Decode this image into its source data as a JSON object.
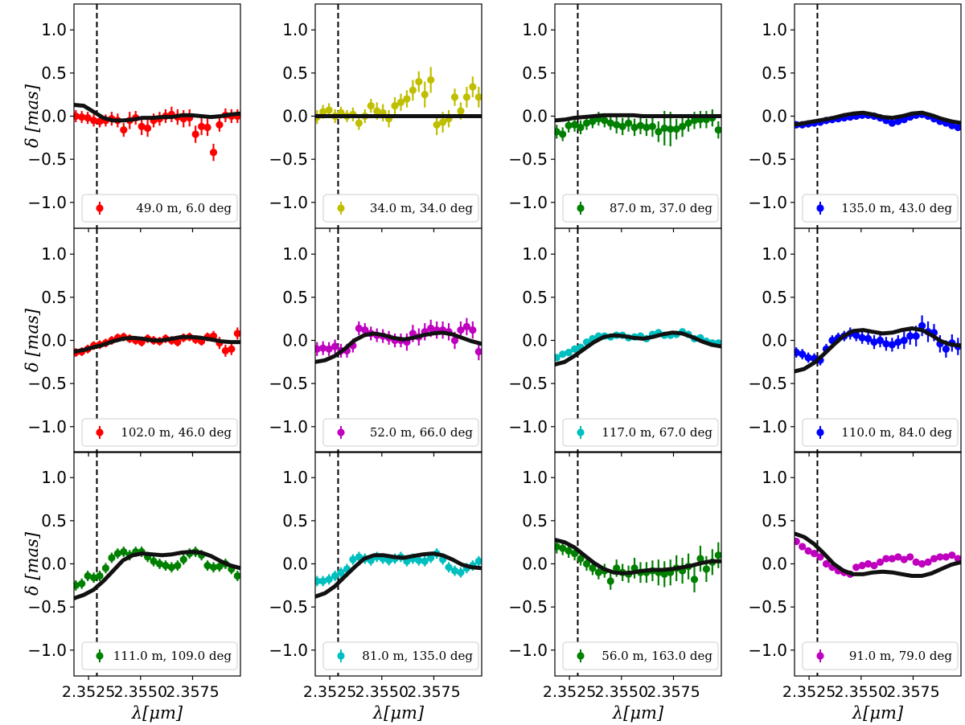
{
  "figure": {
    "xlabel": "λ[μm]",
    "ylabel": "δ [mas]",
    "ylim": [
      -1.3,
      1.3
    ],
    "yticks": [
      1.0,
      0.5,
      0.0,
      -0.5,
      -1.0
    ],
    "ytick_labels": [
      "1.0",
      "0.5",
      "0.0",
      "−0.5",
      "−1.0"
    ],
    "xlim": [
      2.3518,
      2.3598
    ],
    "xticks": [
      2.3525,
      2.355,
      2.3575
    ],
    "xtick_labels": [
      "2.3525",
      "2.3550",
      "2.3575"
    ],
    "line_marker": 2.3529,
    "model_color": "#111111"
  },
  "chart_data": [
    {
      "type": "line",
      "legend": "49.0 m, 6.0 deg",
      "color": "#ff0000",
      "model": [
        0.13,
        0.12,
        0.05,
        -0.02,
        -0.05,
        -0.05,
        -0.04,
        -0.02,
        -0.02,
        -0.01,
        -0.01,
        0.01,
        0.01,
        0.0,
        -0.01,
        0.0,
        0.02,
        0.03
      ],
      "points": [
        0.0,
        -0.01,
        -0.02,
        -0.05,
        -0.06,
        -0.05,
        -0.03,
        -0.05,
        -0.16,
        -0.05,
        -0.02,
        -0.12,
        -0.14,
        -0.05,
        -0.03,
        0.0,
        0.02,
        -0.01,
        -0.03,
        -0.02,
        -0.21,
        -0.12,
        -0.13,
        -0.42,
        -0.1,
        0.01,
        0.0,
        0.0
      ],
      "errors": [
        0.07,
        0.07,
        0.07,
        0.07,
        0.07,
        0.07,
        0.08,
        0.08,
        0.08,
        0.1,
        0.08,
        0.1,
        0.1,
        0.08,
        0.08,
        0.08,
        0.09,
        0.09,
        0.1,
        0.1,
        0.1,
        0.1,
        0.1,
        0.1,
        0.08,
        0.08,
        0.08,
        0.08
      ]
    },
    {
      "type": "line",
      "legend": "34.0 m, 34.0 deg",
      "color": "#bfbf00",
      "model": [
        0.0,
        0.0,
        0.0,
        0.0,
        0.0,
        0.0,
        0.0,
        0.0,
        0.0,
        0.0,
        0.0,
        0.0,
        0.0,
        0.0,
        0.0,
        0.0,
        0.0,
        0.0
      ],
      "points": [
        -0.01,
        0.05,
        0.07,
        0.0,
        0.04,
        0.0,
        0.02,
        -0.08,
        0.0,
        0.12,
        0.06,
        0.04,
        -0.03,
        0.12,
        0.16,
        0.2,
        0.3,
        0.4,
        0.25,
        0.42,
        -0.1,
        -0.07,
        -0.03,
        0.22,
        0.06,
        0.22,
        0.34,
        0.22
      ],
      "errors": [
        0.08,
        0.08,
        0.08,
        0.08,
        0.07,
        0.07,
        0.08,
        0.08,
        0.08,
        0.08,
        0.1,
        0.1,
        0.1,
        0.1,
        0.1,
        0.1,
        0.12,
        0.12,
        0.15,
        0.15,
        0.12,
        0.12,
        0.1,
        0.1,
        0.1,
        0.12,
        0.12,
        0.12
      ]
    },
    {
      "type": "line",
      "legend": "87.0 m, 37.0 deg",
      "color": "#008000",
      "model": [
        -0.05,
        -0.04,
        -0.02,
        -0.01,
        0.0,
        0.01,
        0.01,
        0.01,
        0.01,
        0.0,
        0.0,
        0.0,
        0.0,
        0.0,
        0.0,
        0.0,
        0.0,
        0.0
      ],
      "points": [
        -0.18,
        -0.21,
        -0.11,
        -0.1,
        -0.13,
        -0.08,
        -0.06,
        -0.03,
        -0.05,
        -0.08,
        -0.1,
        -0.12,
        -0.08,
        -0.13,
        -0.11,
        -0.13,
        -0.12,
        -0.18,
        -0.14,
        -0.15,
        -0.15,
        -0.12,
        -0.08,
        -0.05,
        -0.04,
        -0.04,
        -0.02,
        -0.16
      ],
      "errors": [
        0.08,
        0.08,
        0.08,
        0.08,
        0.08,
        0.08,
        0.08,
        0.08,
        0.08,
        0.08,
        0.1,
        0.1,
        0.1,
        0.1,
        0.1,
        0.1,
        0.12,
        0.12,
        0.2,
        0.2,
        0.12,
        0.12,
        0.1,
        0.1,
        0.1,
        0.1,
        0.1,
        0.1
      ]
    },
    {
      "type": "line",
      "legend": "135.0 m, 43.0 deg",
      "color": "#0000ff",
      "model": [
        -0.1,
        -0.08,
        -0.06,
        -0.04,
        -0.02,
        0.01,
        0.03,
        0.04,
        0.02,
        -0.01,
        -0.02,
        0.0,
        0.03,
        0.04,
        0.01,
        -0.03,
        -0.06,
        -0.08
      ],
      "points": [
        -0.1,
        -0.1,
        -0.09,
        -0.08,
        -0.07,
        -0.05,
        -0.04,
        -0.03,
        -0.02,
        -0.01,
        0.0,
        0.01,
        0.01,
        0.0,
        -0.02,
        -0.05,
        -0.08,
        -0.06,
        -0.04,
        -0.01,
        0.01,
        0.02,
        0.0,
        -0.03,
        -0.06,
        -0.08,
        -0.11,
        -0.13
      ],
      "errors": [
        0.04,
        0.04,
        0.04,
        0.04,
        0.04,
        0.04,
        0.04,
        0.04,
        0.04,
        0.04,
        0.04,
        0.04,
        0.04,
        0.04,
        0.04,
        0.04,
        0.04,
        0.04,
        0.04,
        0.04,
        0.04,
        0.04,
        0.04,
        0.04,
        0.04,
        0.04,
        0.04,
        0.04
      ]
    },
    {
      "type": "line",
      "legend": "102.0 m, 46.0 deg",
      "color": "#ff0000",
      "model": [
        -0.13,
        -0.11,
        -0.08,
        -0.05,
        -0.01,
        0.02,
        0.03,
        0.02,
        0.0,
        0.0,
        0.02,
        0.04,
        0.04,
        0.03,
        0.01,
        -0.01,
        -0.02,
        -0.02
      ],
      "points": [
        -0.14,
        -0.13,
        -0.1,
        -0.06,
        -0.05,
        -0.03,
        0.0,
        0.03,
        0.04,
        0.02,
        0.0,
        -0.02,
        0.02,
        0.0,
        -0.01,
        0.02,
        0.0,
        -0.02,
        0.03,
        0.04,
        0.01,
        -0.01,
        0.04,
        0.05,
        -0.03,
        -0.12,
        -0.1,
        0.08
      ],
      "errors": [
        0.05,
        0.05,
        0.05,
        0.05,
        0.05,
        0.05,
        0.05,
        0.05,
        0.05,
        0.05,
        0.05,
        0.05,
        0.05,
        0.05,
        0.05,
        0.05,
        0.05,
        0.05,
        0.05,
        0.05,
        0.05,
        0.05,
        0.05,
        0.06,
        0.07,
        0.07,
        0.07,
        0.07
      ]
    },
    {
      "type": "line",
      "legend": "52.0 m, 66.0 deg",
      "color": "#bf00bf",
      "model": [
        -0.25,
        -0.23,
        -0.18,
        -0.1,
        0.0,
        0.06,
        0.08,
        0.06,
        0.03,
        0.01,
        0.03,
        0.06,
        0.08,
        0.09,
        0.07,
        0.03,
        -0.01,
        -0.04
      ],
      "points": [
        -0.1,
        -0.09,
        -0.1,
        -0.07,
        -0.12,
        -0.12,
        -0.06,
        0.14,
        0.12,
        0.08,
        0.06,
        0.05,
        0.03,
        0.0,
        0.0,
        -0.02,
        0.08,
        0.04,
        0.1,
        0.14,
        0.12,
        0.12,
        0.1,
        0.0,
        0.12,
        0.16,
        0.12,
        -0.13
      ],
      "errors": [
        0.08,
        0.08,
        0.08,
        0.08,
        0.08,
        0.08,
        0.08,
        0.08,
        0.08,
        0.08,
        0.08,
        0.08,
        0.08,
        0.08,
        0.08,
        0.1,
        0.1,
        0.1,
        0.1,
        0.1,
        0.1,
        0.1,
        0.1,
        0.1,
        0.1,
        0.1,
        0.1,
        0.1
      ]
    },
    {
      "type": "line",
      "legend": "117.0 m, 67.0 deg",
      "color": "#00bfbf",
      "model": [
        -0.28,
        -0.25,
        -0.18,
        -0.1,
        -0.02,
        0.04,
        0.06,
        0.05,
        0.03,
        0.02,
        0.04,
        0.07,
        0.09,
        0.08,
        0.04,
        -0.01,
        -0.05,
        -0.07
      ],
      "points": [
        -0.2,
        -0.16,
        -0.14,
        -0.1,
        -0.08,
        -0.02,
        0.02,
        0.05,
        0.05,
        0.04,
        0.06,
        0.06,
        0.03,
        0.04,
        0.05,
        0.02,
        0.07,
        0.09,
        0.06,
        0.06,
        0.07,
        0.1,
        0.07,
        0.02,
        0.03,
        -0.01,
        -0.03,
        -0.03
      ],
      "errors": [
        0.04,
        0.04,
        0.04,
        0.04,
        0.04,
        0.04,
        0.04,
        0.04,
        0.04,
        0.04,
        0.04,
        0.04,
        0.04,
        0.04,
        0.04,
        0.04,
        0.04,
        0.04,
        0.04,
        0.04,
        0.04,
        0.04,
        0.04,
        0.04,
        0.04,
        0.04,
        0.04,
        0.04
      ]
    },
    {
      "type": "line",
      "legend": "110.0 m, 84.0 deg",
      "color": "#0000ff",
      "model": [
        -0.36,
        -0.33,
        -0.26,
        -0.16,
        -0.05,
        0.05,
        0.11,
        0.12,
        0.1,
        0.08,
        0.09,
        0.12,
        0.14,
        0.12,
        0.06,
        -0.01,
        -0.05,
        -0.06
      ],
      "points": [
        -0.14,
        -0.16,
        -0.2,
        -0.21,
        -0.23,
        -0.1,
        0.0,
        0.03,
        0.05,
        0.08,
        0.06,
        0.03,
        0.02,
        -0.02,
        0.0,
        -0.04,
        -0.05,
        -0.02,
        0.0,
        0.05,
        0.05,
        0.17,
        0.1,
        0.09,
        -0.04,
        -0.1,
        -0.03,
        -0.07
      ],
      "errors": [
        0.06,
        0.06,
        0.06,
        0.06,
        0.06,
        0.06,
        0.06,
        0.06,
        0.06,
        0.07,
        0.07,
        0.07,
        0.07,
        0.08,
        0.08,
        0.08,
        0.08,
        0.08,
        0.1,
        0.1,
        0.12,
        0.12,
        0.12,
        0.1,
        0.1,
        0.1,
        0.1,
        0.1
      ]
    },
    {
      "type": "line",
      "legend": "111.0 m, 109.0 deg",
      "color": "#008000",
      "model": [
        -0.4,
        -0.36,
        -0.3,
        -0.2,
        -0.08,
        0.04,
        0.1,
        0.12,
        0.11,
        0.1,
        0.11,
        0.13,
        0.14,
        0.13,
        0.09,
        0.03,
        -0.02,
        -0.05
      ],
      "points": [
        -0.25,
        -0.23,
        -0.14,
        -0.16,
        -0.14,
        -0.05,
        0.07,
        0.12,
        0.14,
        0.1,
        0.14,
        0.14,
        0.08,
        0.03,
        0.0,
        -0.02,
        -0.04,
        -0.02,
        0.05,
        0.12,
        0.14,
        0.1,
        -0.02,
        -0.04,
        -0.03,
        0.0,
        -0.06,
        -0.14
      ],
      "errors": [
        0.06,
        0.06,
        0.06,
        0.06,
        0.06,
        0.06,
        0.06,
        0.06,
        0.06,
        0.06,
        0.06,
        0.06,
        0.06,
        0.06,
        0.06,
        0.06,
        0.06,
        0.06,
        0.06,
        0.06,
        0.06,
        0.06,
        0.06,
        0.06,
        0.06,
        0.06,
        0.06,
        0.06
      ]
    },
    {
      "type": "line",
      "legend": "81.0 m, 135.0 deg",
      "color": "#00bfbf",
      "model": [
        -0.38,
        -0.34,
        -0.26,
        -0.15,
        -0.04,
        0.06,
        0.1,
        0.1,
        0.08,
        0.07,
        0.09,
        0.11,
        0.12,
        0.1,
        0.05,
        -0.01,
        -0.04,
        -0.05
      ],
      "points": [
        -0.2,
        -0.2,
        -0.18,
        -0.14,
        -0.1,
        -0.06,
        0.05,
        0.08,
        0.06,
        0.04,
        0.08,
        0.06,
        0.04,
        0.06,
        0.08,
        0.03,
        0.06,
        0.04,
        0.03,
        0.07,
        0.12,
        0.05,
        -0.04,
        -0.08,
        -0.1,
        -0.05,
        -0.02,
        0.03
      ],
      "errors": [
        0.06,
        0.06,
        0.06,
        0.06,
        0.06,
        0.06,
        0.06,
        0.06,
        0.06,
        0.06,
        0.06,
        0.06,
        0.06,
        0.06,
        0.06,
        0.06,
        0.06,
        0.06,
        0.06,
        0.06,
        0.06,
        0.06,
        0.06,
        0.06,
        0.06,
        0.06,
        0.06,
        0.06
      ]
    },
    {
      "type": "line",
      "legend": "56.0 m, 163.0 deg",
      "color": "#008000",
      "model": [
        0.28,
        0.25,
        0.19,
        0.1,
        0.01,
        -0.06,
        -0.1,
        -0.11,
        -0.1,
        -0.08,
        -0.07,
        -0.07,
        -0.06,
        -0.04,
        -0.02,
        0.01,
        0.03,
        0.03
      ],
      "points": [
        0.2,
        0.18,
        0.15,
        0.12,
        0.06,
        0.0,
        -0.05,
        -0.1,
        -0.08,
        -0.2,
        -0.05,
        -0.1,
        -0.12,
        -0.05,
        -0.1,
        -0.1,
        -0.08,
        -0.1,
        -0.12,
        -0.1,
        -0.05,
        -0.08,
        -0.03,
        -0.18,
        0.06,
        -0.06,
        0.02,
        0.1
      ],
      "errors": [
        0.08,
        0.08,
        0.08,
        0.08,
        0.08,
        0.08,
        0.08,
        0.08,
        0.08,
        0.1,
        0.1,
        0.1,
        0.1,
        0.12,
        0.12,
        0.12,
        0.12,
        0.15,
        0.15,
        0.15,
        0.15,
        0.15,
        0.15,
        0.15,
        0.15,
        0.15,
        0.15,
        0.15
      ]
    },
    {
      "type": "line",
      "legend": "91.0 m, 79.0 deg",
      "color": "#bf00bf",
      "model": [
        0.35,
        0.31,
        0.23,
        0.12,
        0.0,
        -0.08,
        -0.12,
        -0.12,
        -0.1,
        -0.09,
        -0.1,
        -0.12,
        -0.14,
        -0.14,
        -0.11,
        -0.06,
        -0.01,
        0.02
      ],
      "points": [
        0.26,
        0.2,
        0.15,
        0.12,
        0.08,
        0.0,
        -0.04,
        -0.08,
        -0.1,
        -0.12,
        -0.04,
        -0.02,
        0.0,
        -0.02,
        0.02,
        0.06,
        0.06,
        0.08,
        0.05,
        0.08,
        0.02,
        0.0,
        0.02,
        0.06,
        0.08,
        0.08,
        0.1,
        0.06
      ],
      "errors": [
        0.04,
        0.04,
        0.04,
        0.04,
        0.04,
        0.04,
        0.04,
        0.04,
        0.04,
        0.04,
        0.04,
        0.04,
        0.04,
        0.04,
        0.04,
        0.04,
        0.04,
        0.04,
        0.04,
        0.04,
        0.04,
        0.04,
        0.04,
        0.04,
        0.04,
        0.04,
        0.04,
        0.04
      ]
    }
  ]
}
